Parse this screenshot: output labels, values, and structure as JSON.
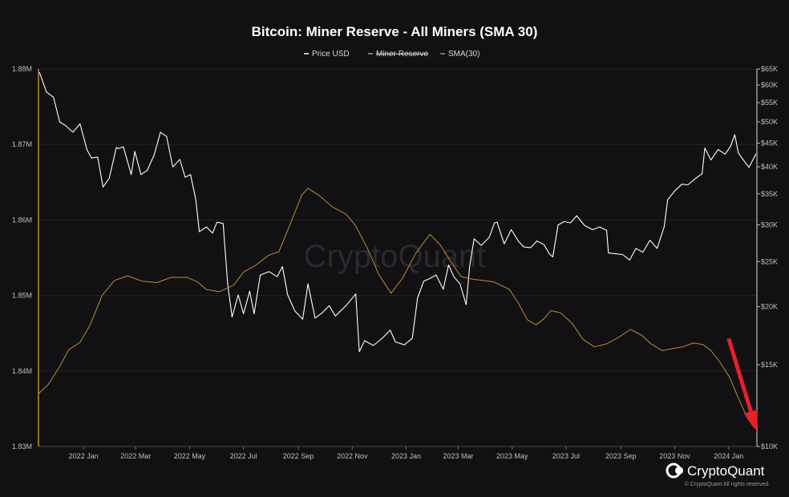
{
  "chart_data": {
    "type": "line",
    "title": "Bitcoin: Miner Reserve - All Miners (SMA 30)",
    "legend": [
      {
        "label": "Price USD",
        "color": "#ffffff",
        "struck": false
      },
      {
        "label": "Miner Reserve",
        "color": "#9a9a9a",
        "struck": true
      },
      {
        "label": "SMA(30)",
        "color": "#c08a2e",
        "struck": false
      }
    ],
    "x_ticks": [
      "2022 Jan",
      "2022 Mar",
      "2022 May",
      "2022 Jul",
      "2022 Sep",
      "2022 Nov",
      "2023 Jan",
      "2023 Mar",
      "2023 May",
      "2023 Jul",
      "2023 Sep",
      "2023 Nov",
      "2024 Jan"
    ],
    "x_tick_dates": [
      "2022-01-01",
      "2022-03-01",
      "2022-05-01",
      "2022-07-01",
      "2022-09-01",
      "2022-11-01",
      "2023-01-01",
      "2023-03-01",
      "2023-05-01",
      "2023-07-01",
      "2023-09-01",
      "2023-11-01",
      "2024-01-01"
    ],
    "x_range": [
      "2021-11-11",
      "2024-02-02"
    ],
    "y_left": {
      "name": "Miner Reserve",
      "ticks": [
        {
          "label": "1.88M",
          "value": 1.88
        },
        {
          "label": "1.87M",
          "value": 1.87
        },
        {
          "label": "1.86M",
          "value": 1.86
        },
        {
          "label": "1.85M",
          "value": 1.85
        },
        {
          "label": "1.84M",
          "value": 1.84
        },
        {
          "label": "1.83M",
          "value": 1.83
        }
      ],
      "range": [
        1.83,
        1.88
      ],
      "unit": "millions BTC"
    },
    "y_right": {
      "name": "Price USD",
      "scale": "log",
      "ticks": [
        {
          "label": "$65K",
          "value": 65000
        },
        {
          "label": "$60K",
          "value": 60000
        },
        {
          "label": "$55K",
          "value": 55000
        },
        {
          "label": "$50K",
          "value": 50000
        },
        {
          "label": "$45K",
          "value": 45000
        },
        {
          "label": "$40K",
          "value": 40000
        },
        {
          "label": "$35K",
          "value": 35000
        },
        {
          "label": "$30K",
          "value": 30000
        },
        {
          "label": "$25K",
          "value": 25000
        },
        {
          "label": "$20K",
          "value": 20000
        },
        {
          "label": "$15K",
          "value": 15000
        },
        {
          "label": "$10K",
          "value": 10000
        }
      ],
      "range": [
        10000,
        65000
      ]
    },
    "grid": true,
    "legend_position": "top-center",
    "series": [
      {
        "name": "Price USD",
        "axis": "right",
        "color": "#ffffff",
        "points": [
          [
            "2021-11-12",
            64000
          ],
          [
            "2021-11-20",
            58000
          ],
          [
            "2021-11-28",
            56500
          ],
          [
            "2021-12-05",
            50000
          ],
          [
            "2021-12-12",
            49000
          ],
          [
            "2021-12-20",
            47500
          ],
          [
            "2021-12-28",
            49500
          ],
          [
            "2022-01-05",
            43500
          ],
          [
            "2022-01-10",
            41800
          ],
          [
            "2022-01-17",
            42000
          ],
          [
            "2022-01-23",
            36200
          ],
          [
            "2022-01-30",
            37800
          ],
          [
            "2022-02-07",
            44000
          ],
          [
            "2022-02-10",
            43800
          ],
          [
            "2022-02-15",
            44200
          ],
          [
            "2022-02-24",
            38500
          ],
          [
            "2022-02-28",
            43200
          ],
          [
            "2022-03-07",
            38500
          ],
          [
            "2022-03-14",
            39300
          ],
          [
            "2022-03-22",
            42500
          ],
          [
            "2022-03-29",
            47500
          ],
          [
            "2022-04-05",
            46500
          ],
          [
            "2022-04-12",
            40000
          ],
          [
            "2022-04-20",
            41500
          ],
          [
            "2022-04-26",
            38000
          ],
          [
            "2022-05-02",
            38500
          ],
          [
            "2022-05-08",
            34000
          ],
          [
            "2022-05-12",
            29000
          ],
          [
            "2022-05-20",
            29700
          ],
          [
            "2022-05-27",
            28800
          ],
          [
            "2022-06-01",
            30400
          ],
          [
            "2022-06-08",
            30200
          ],
          [
            "2022-06-13",
            22500
          ],
          [
            "2022-06-18",
            19000
          ],
          [
            "2022-06-25",
            21200
          ],
          [
            "2022-07-01",
            19300
          ],
          [
            "2022-07-08",
            21600
          ],
          [
            "2022-07-13",
            19300
          ],
          [
            "2022-07-20",
            23400
          ],
          [
            "2022-07-30",
            23800
          ],
          [
            "2022-08-08",
            23200
          ],
          [
            "2022-08-14",
            24400
          ],
          [
            "2022-08-20",
            21200
          ],
          [
            "2022-08-28",
            19600
          ],
          [
            "2022-09-06",
            18800
          ],
          [
            "2022-09-12",
            22400
          ],
          [
            "2022-09-20",
            18900
          ],
          [
            "2022-09-28",
            19400
          ],
          [
            "2022-10-06",
            20100
          ],
          [
            "2022-10-13",
            19100
          ],
          [
            "2022-10-25",
            20100
          ],
          [
            "2022-11-05",
            21300
          ],
          [
            "2022-11-09",
            16000
          ],
          [
            "2022-11-15",
            16900
          ],
          [
            "2022-11-25",
            16500
          ],
          [
            "2022-12-05",
            17100
          ],
          [
            "2022-12-14",
            17800
          ],
          [
            "2022-12-20",
            16800
          ],
          [
            "2022-12-30",
            16550
          ],
          [
            "2023-01-08",
            17100
          ],
          [
            "2023-01-14",
            20900
          ],
          [
            "2023-01-21",
            22700
          ],
          [
            "2023-01-28",
            23000
          ],
          [
            "2023-02-04",
            23400
          ],
          [
            "2023-02-12",
            21800
          ],
          [
            "2023-02-18",
            24600
          ],
          [
            "2023-02-24",
            23200
          ],
          [
            "2023-03-03",
            22400
          ],
          [
            "2023-03-10",
            20200
          ],
          [
            "2023-03-14",
            24500
          ],
          [
            "2023-03-19",
            28000
          ],
          [
            "2023-03-27",
            27100
          ],
          [
            "2023-04-05",
            28200
          ],
          [
            "2023-04-11",
            30300
          ],
          [
            "2023-04-14",
            30400
          ],
          [
            "2023-04-22",
            27300
          ],
          [
            "2023-04-30",
            29300
          ],
          [
            "2023-05-08",
            27700
          ],
          [
            "2023-05-14",
            26900
          ],
          [
            "2023-05-22",
            26800
          ],
          [
            "2023-05-29",
            27700
          ],
          [
            "2023-06-06",
            27200
          ],
          [
            "2023-06-12",
            26000
          ],
          [
            "2023-06-16",
            25600
          ],
          [
            "2023-06-22",
            30000
          ],
          [
            "2023-06-29",
            30500
          ],
          [
            "2023-07-06",
            30300
          ],
          [
            "2023-07-13",
            31400
          ],
          [
            "2023-07-22",
            29900
          ],
          [
            "2023-07-31",
            29300
          ],
          [
            "2023-08-08",
            29700
          ],
          [
            "2023-08-16",
            29200
          ],
          [
            "2023-08-18",
            26100
          ],
          [
            "2023-08-26",
            26000
          ],
          [
            "2023-09-03",
            25900
          ],
          [
            "2023-09-11",
            25200
          ],
          [
            "2023-09-18",
            26700
          ],
          [
            "2023-09-26",
            26200
          ],
          [
            "2023-10-04",
            27800
          ],
          [
            "2023-10-12",
            26700
          ],
          [
            "2023-10-20",
            29700
          ],
          [
            "2023-10-24",
            34000
          ],
          [
            "2023-11-01",
            35500
          ],
          [
            "2023-11-09",
            36700
          ],
          [
            "2023-11-16",
            36600
          ],
          [
            "2023-11-24",
            37700
          ],
          [
            "2023-12-02",
            38700
          ],
          [
            "2023-12-05",
            43900
          ],
          [
            "2023-12-12",
            41400
          ],
          [
            "2023-12-20",
            43600
          ],
          [
            "2023-12-28",
            42600
          ],
          [
            "2024-01-03",
            44200
          ],
          [
            "2024-01-08",
            46900
          ],
          [
            "2024-01-12",
            42800
          ],
          [
            "2024-01-18",
            41300
          ],
          [
            "2024-01-24",
            39900
          ],
          [
            "2024-02-01",
            42700
          ]
        ]
      },
      {
        "name": "SMA(30)",
        "axis": "left",
        "color": "#c08a2e",
        "points": [
          [
            "2021-11-11",
            1.837
          ],
          [
            "2021-11-22",
            1.8382
          ],
          [
            "2021-12-05",
            1.8406
          ],
          [
            "2021-12-15",
            1.8428
          ],
          [
            "2021-12-28",
            1.8438
          ],
          [
            "2022-01-08",
            1.846
          ],
          [
            "2022-01-22",
            1.85
          ],
          [
            "2022-02-05",
            1.852
          ],
          [
            "2022-02-20",
            1.8526
          ],
          [
            "2022-03-08",
            1.8519
          ],
          [
            "2022-03-25",
            1.8517
          ],
          [
            "2022-04-10",
            1.8524
          ],
          [
            "2022-04-28",
            1.8524
          ],
          [
            "2022-05-10",
            1.8518
          ],
          [
            "2022-05-20",
            1.8508
          ],
          [
            "2022-06-04",
            1.8505
          ],
          [
            "2022-06-20",
            1.8514
          ],
          [
            "2022-07-01",
            1.8531
          ],
          [
            "2022-07-15",
            1.854
          ],
          [
            "2022-07-29",
            1.8553
          ],
          [
            "2022-08-10",
            1.8558
          ],
          [
            "2022-08-22",
            1.8592
          ],
          [
            "2022-09-05",
            1.8633
          ],
          [
            "2022-09-12",
            1.8642
          ],
          [
            "2022-09-25",
            1.8632
          ],
          [
            "2022-10-10",
            1.8617
          ],
          [
            "2022-10-25",
            1.8608
          ],
          [
            "2022-11-05",
            1.8592
          ],
          [
            "2022-11-18",
            1.8563
          ],
          [
            "2022-12-01",
            1.8528
          ],
          [
            "2022-12-15",
            1.8503
          ],
          [
            "2022-12-28",
            1.8523
          ],
          [
            "2023-01-12",
            1.8556
          ],
          [
            "2023-01-28",
            1.8581
          ],
          [
            "2023-02-08",
            1.8568
          ],
          [
            "2023-02-20",
            1.8546
          ],
          [
            "2023-03-04",
            1.8525
          ],
          [
            "2023-03-15",
            1.8522
          ],
          [
            "2023-03-28",
            1.852
          ],
          [
            "2023-04-10",
            1.8518
          ],
          [
            "2023-04-28",
            1.8508
          ],
          [
            "2023-05-08",
            1.849
          ],
          [
            "2023-05-18",
            1.8468
          ],
          [
            "2023-05-28",
            1.8461
          ],
          [
            "2023-06-05",
            1.8468
          ],
          [
            "2023-06-14",
            1.848
          ],
          [
            "2023-06-25",
            1.8477
          ],
          [
            "2023-07-08",
            1.8463
          ],
          [
            "2023-07-20",
            1.8442
          ],
          [
            "2023-08-02",
            1.8432
          ],
          [
            "2023-08-16",
            1.8436
          ],
          [
            "2023-08-30",
            1.8445
          ],
          [
            "2023-09-12",
            1.8455
          ],
          [
            "2023-09-25",
            1.8447
          ],
          [
            "2023-10-05",
            1.8436
          ],
          [
            "2023-10-18",
            1.8427
          ],
          [
            "2023-10-31",
            1.843
          ],
          [
            "2023-11-10",
            1.8432
          ],
          [
            "2023-11-22",
            1.8437
          ],
          [
            "2023-12-03",
            1.8435
          ],
          [
            "2023-12-12",
            1.8427
          ],
          [
            "2023-12-22",
            1.8412
          ],
          [
            "2024-01-02",
            1.8392
          ],
          [
            "2024-01-12",
            1.8364
          ],
          [
            "2024-01-22",
            1.8338
          ],
          [
            "2024-01-30",
            1.8325
          ]
        ]
      }
    ],
    "annotations": [
      {
        "type": "arrow",
        "color": "#e5202b",
        "from": [
          "2024-01-01",
          1.8443
        ],
        "to": [
          "2024-02-02",
          1.832
        ]
      }
    ],
    "watermark": "CryptoQuant"
  },
  "branding": {
    "logo_text": "CryptoQuant",
    "copyright": "© CryptoQuant All rights reserved."
  }
}
